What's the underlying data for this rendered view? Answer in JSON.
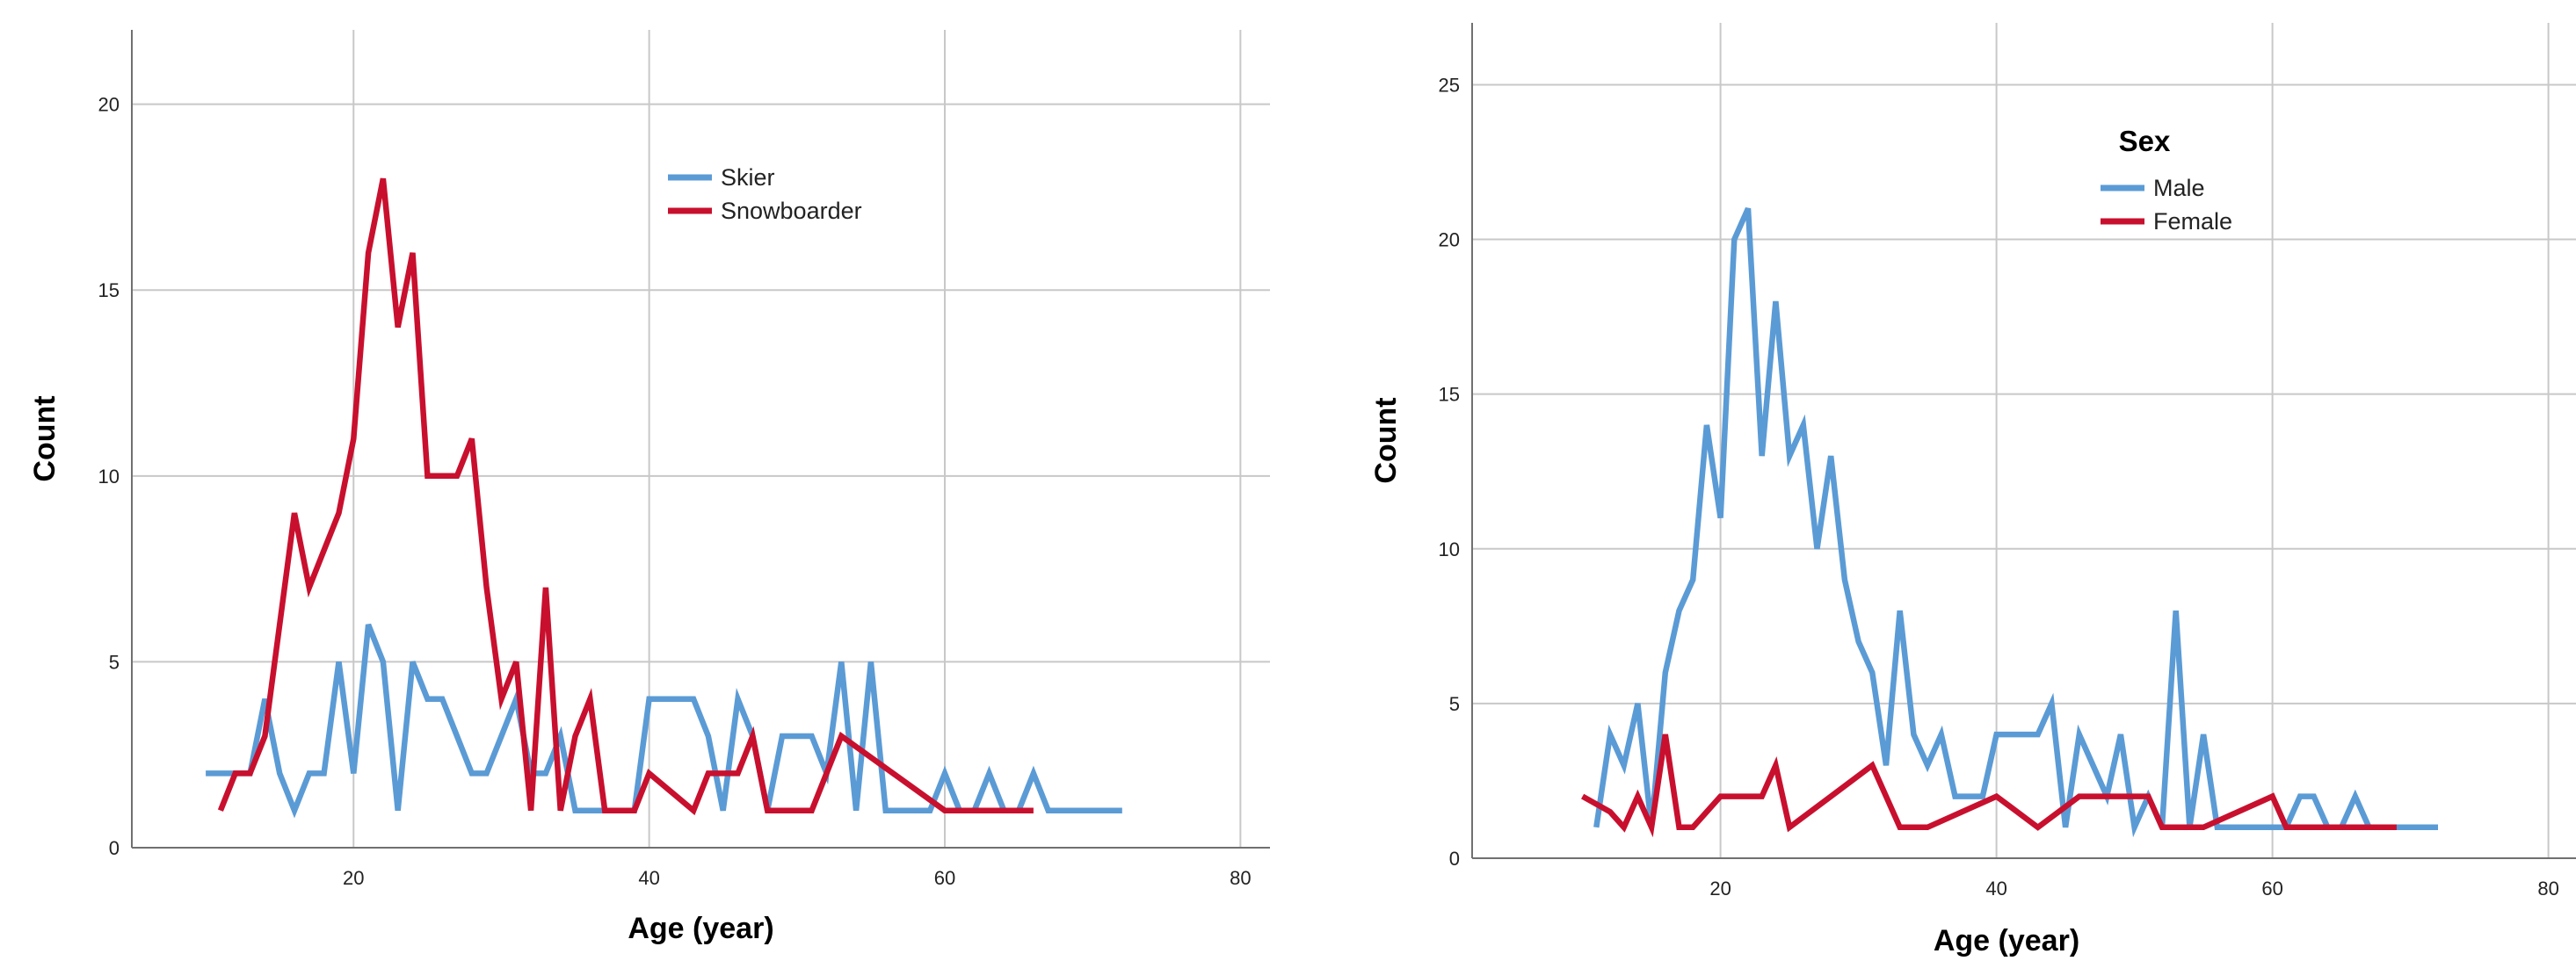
{
  "chart_data": [
    {
      "type": "line",
      "xlabel": "Age (year)",
      "ylabel": "Count",
      "xlim": [
        5,
        82
      ],
      "ylim": [
        0,
        22
      ],
      "xticks": [
        20,
        40,
        60,
        80
      ],
      "yticks": [
        0,
        5,
        10,
        15,
        20
      ],
      "grid": true,
      "legend": {
        "title": "",
        "position": "top-right"
      },
      "series": [
        {
          "name": "Skier",
          "color": "#5b9bd5",
          "x": [
            10,
            11,
            12,
            13,
            14,
            15,
            16,
            17,
            18,
            19,
            20,
            21,
            22,
            23,
            24,
            25,
            26,
            27,
            28,
            29,
            30,
            31,
            32,
            33,
            34,
            35,
            36,
            37,
            38,
            39,
            40,
            41,
            42,
            43,
            44,
            45,
            46,
            47,
            48,
            49,
            50,
            51,
            52,
            53,
            54,
            55,
            56,
            57,
            58,
            59,
            60,
            61,
            62,
            63,
            64,
            65,
            66,
            67,
            68,
            69,
            70,
            71,
            72
          ],
          "y": [
            2,
            2,
            2,
            2,
            4,
            2,
            1,
            2,
            2,
            5,
            2,
            6,
            5,
            1,
            5,
            4,
            4,
            3,
            2,
            2,
            3,
            4,
            2,
            2,
            3,
            1,
            1,
            1,
            1,
            1,
            4,
            4,
            4,
            4,
            3,
            1,
            4,
            3,
            1,
            3,
            3,
            3,
            2,
            5,
            1,
            5,
            1,
            1,
            1,
            1,
            2,
            1,
            1,
            2,
            1,
            1,
            2,
            1,
            1,
            1,
            1,
            1,
            1
          ]
        },
        {
          "name": "Snowboarder",
          "color": "#c8102e",
          "x": [
            11,
            12,
            13,
            14,
            15,
            16,
            17,
            18,
            19,
            20,
            21,
            22,
            23,
            24,
            25,
            26,
            27,
            28,
            29,
            30,
            31,
            32,
            33,
            34,
            35,
            36,
            37,
            38,
            39,
            40,
            43,
            44,
            46,
            47,
            48,
            51,
            53,
            60,
            61,
            63,
            64,
            65,
            66
          ],
          "y": [
            1,
            2,
            2,
            3,
            6,
            9,
            7,
            8,
            9,
            11,
            16,
            18,
            14,
            16,
            10,
            10,
            10,
            11,
            7,
            4,
            5,
            1,
            7,
            1,
            3,
            4,
            1,
            1,
            1,
            2,
            1,
            2,
            2,
            3,
            1,
            1,
            3,
            1,
            1,
            1,
            1,
            1,
            1
          ]
        }
      ]
    },
    {
      "type": "line",
      "xlabel": "Age (year)",
      "ylabel": "Count",
      "xlim": [
        2,
        82
      ],
      "ylim": [
        0,
        27
      ],
      "xticks": [
        20,
        40,
        60,
        80
      ],
      "yticks": [
        0,
        5,
        10,
        15,
        20,
        25
      ],
      "grid": true,
      "legend": {
        "title": "Sex",
        "position": "top-right"
      },
      "series": [
        {
          "name": "Male",
          "color": "#5b9bd5",
          "x": [
            11,
            12,
            13,
            14,
            15,
            16,
            17,
            18,
            19,
            20,
            21,
            22,
            23,
            24,
            25,
            26,
            27,
            28,
            29,
            30,
            31,
            32,
            33,
            34,
            35,
            36,
            37,
            38,
            39,
            40,
            41,
            42,
            43,
            44,
            45,
            46,
            47,
            48,
            49,
            50,
            51,
            52,
            53,
            54,
            55,
            56,
            57,
            58,
            59,
            60,
            61,
            62,
            63,
            64,
            65,
            66,
            67,
            68,
            69,
            70,
            71,
            72
          ],
          "y": [
            1,
            4,
            3,
            5,
            1,
            6,
            8,
            9,
            14,
            11,
            20,
            21,
            13,
            18,
            13,
            14,
            10,
            13,
            9,
            7,
            6,
            3,
            8,
            4,
            3,
            4,
            2,
            2,
            2,
            4,
            4,
            4,
            4,
            5,
            1,
            4,
            3,
            2,
            4,
            1,
            2,
            1,
            8,
            1,
            4,
            1,
            1,
            1,
            1,
            1,
            1,
            2,
            2,
            1,
            1,
            2,
            1,
            1,
            1,
            1,
            1,
            1
          ]
        },
        {
          "name": "Female",
          "color": "#c8102e",
          "x": [
            10,
            12,
            13,
            14,
            15,
            16,
            17,
            18,
            19,
            20,
            22,
            23,
            24,
            25,
            28,
            31,
            33,
            35,
            40,
            43,
            46,
            48,
            50,
            51,
            52,
            53,
            55,
            60,
            61,
            63,
            65,
            67,
            69
          ],
          "y": [
            2,
            1.5,
            1,
            2,
            1,
            4,
            1,
            1,
            1.5,
            2,
            2,
            2,
            3,
            1,
            2,
            3,
            1,
            1,
            2,
            1,
            2,
            2,
            2,
            2,
            1,
            1,
            1,
            2,
            1,
            1,
            1,
            1,
            1
          ]
        }
      ]
    }
  ]
}
